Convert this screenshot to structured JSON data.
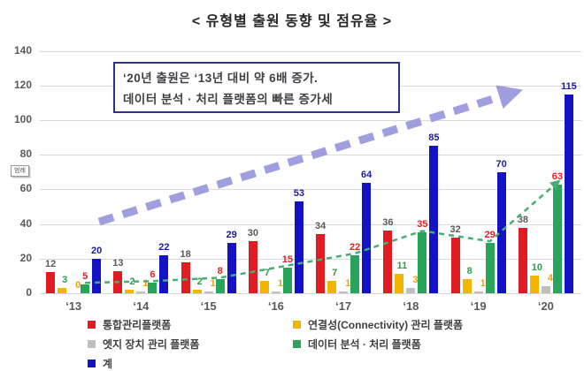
{
  "mini_legend_label": "범례",
  "annotation": {
    "line1": "‘20년 출원은 ‘13년 대비 약 6배 증가.",
    "line2": "데이터 분석 · 처리 플랫폼의 빠른 증가세"
  },
  "colors": {
    "background": "#ffffff",
    "grid": "#d9d9d9",
    "axis_text": "#595959",
    "title_text": "#262626",
    "annotation_border": "#2e3192",
    "annotation_text": "#3f3f46",
    "arrow": "#9f9fe0",
    "trend": "#46ae75"
  },
  "chart_data": {
    "type": "bar",
    "title": "< 유형별 출원 동향 및 점유율 >",
    "categories": [
      "‘13",
      "‘14",
      "‘15",
      "‘16",
      "‘17",
      "‘18",
      "‘19",
      "‘20"
    ],
    "series": [
      {
        "name": "통합관리플랫폼",
        "bar_color": "#e11b22",
        "label_color": "#595959",
        "label_dx": 0,
        "values": [
          12,
          13,
          18,
          30,
          34,
          36,
          32,
          38
        ]
      },
      {
        "name": "연결성(Connectivity) 관리 플랫폼",
        "bar_color": "#f2b600",
        "label_color": "#2d9e4f",
        "label_dx": 3,
        "values": [
          3,
          2,
          2,
          7,
          7,
          11,
          8,
          10
        ]
      },
      {
        "name": "엣지 장치 관리 플랫폼",
        "bar_color": "#bfbfbf",
        "label_color": "#f0a202",
        "label_dx": 5,
        "values": [
          0,
          1,
          1,
          1,
          1,
          3,
          1,
          4
        ]
      },
      {
        "name": "데이터 분석 · 처리 플랫폼",
        "bar_color": "#29a45b",
        "label_color": "#e02027",
        "label_dx": 0,
        "values": [
          5,
          6,
          8,
          15,
          22,
          35,
          29,
          63
        ]
      },
      {
        "name": "계",
        "bar_color": "#1312c4",
        "label_color": "#1b1b9e",
        "label_dx": 0,
        "values": [
          20,
          22,
          29,
          53,
          64,
          85,
          70,
          115
        ]
      }
    ],
    "ylim": [
      0,
      140
    ],
    "yticks": [
      0,
      20,
      40,
      60,
      80,
      100,
      120,
      140
    ],
    "grid": true,
    "legend_position": "bottom",
    "trend_line": {
      "follows_series": "데이터 분석 · 처리 플랫폼",
      "style": "dashed",
      "arrow_at_end": true
    },
    "big_arrow": {
      "style": "thick-dashed",
      "direction": "up-right",
      "meaning": "overall growth ‘13 → ‘20"
    }
  }
}
